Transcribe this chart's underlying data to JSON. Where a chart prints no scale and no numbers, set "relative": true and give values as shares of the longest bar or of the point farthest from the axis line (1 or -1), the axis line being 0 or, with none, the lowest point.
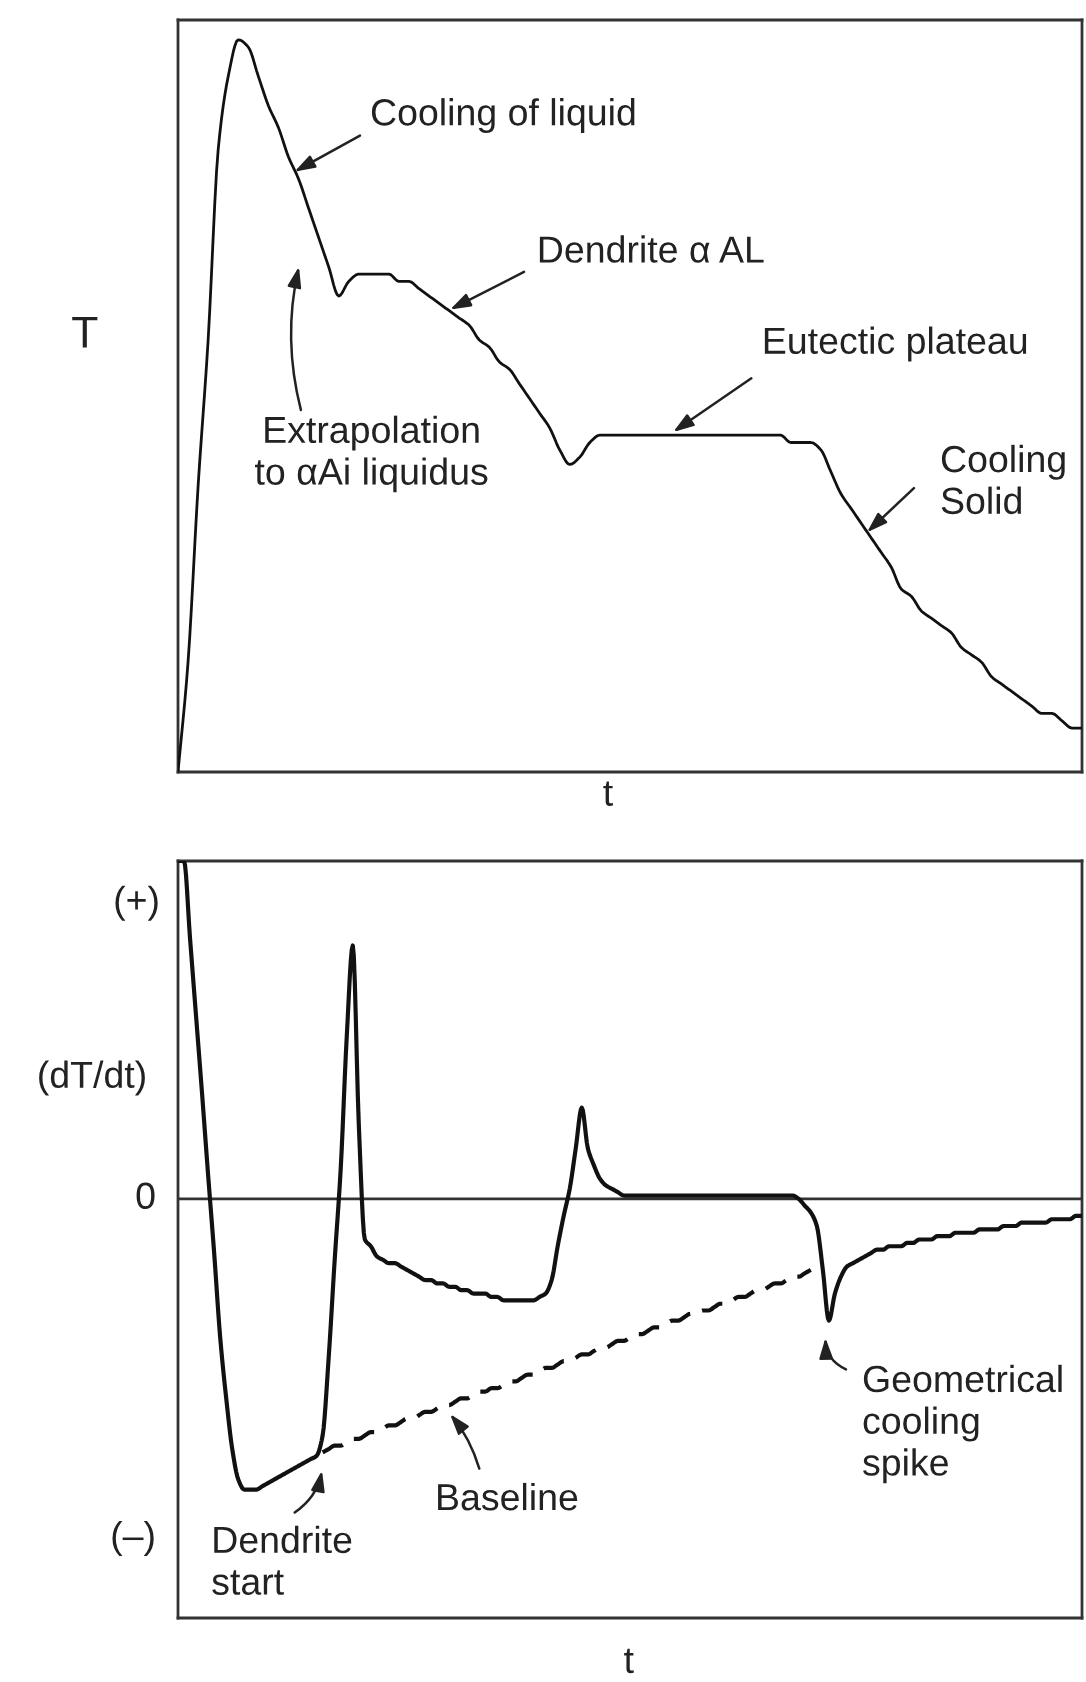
{
  "chart_data": [
    {
      "type": "line",
      "xlabel": "t",
      "ylabel": "T",
      "relative": true,
      "line_style": "solid",
      "categories": [
        null,
        null,
        null,
        null,
        null,
        null,
        null,
        null,
        null,
        null,
        null,
        null,
        null,
        null,
        null,
        null,
        null,
        null,
        null,
        null,
        null,
        null,
        null,
        null,
        null,
        null,
        null,
        null,
        null,
        null,
        null,
        null,
        null,
        null,
        null,
        null,
        null,
        null,
        null,
        null,
        null,
        null,
        null,
        null,
        null,
        null,
        null,
        null,
        null,
        null,
        null,
        null,
        null,
        null,
        null,
        null,
        null,
        null,
        null,
        null,
        null,
        null,
        null,
        null,
        null,
        null,
        null,
        null,
        null,
        null,
        null,
        null,
        null,
        null,
        null,
        null,
        null,
        null,
        null,
        null,
        null,
        null,
        null,
        null,
        null,
        null,
        null,
        null,
        null,
        null,
        null
      ],
      "series": [
        {
          "color": "#111111",
          "values": [
            0,
            0.15,
            0.39,
            0.59,
            0.85,
            0.95,
            1,
            0.99,
            0.95,
            0.91,
            0.88,
            0.84,
            0.81,
            0.77,
            0.73,
            0.69,
            0.65,
            0.67,
            0.68,
            0.68,
            0.68,
            0.68,
            0.67,
            0.67,
            0.66,
            0.65,
            0.64,
            0.63,
            0.62,
            0.61,
            0.59,
            0.58,
            0.56,
            0.55,
            0.53,
            0.51,
            0.49,
            0.47,
            0.44,
            0.42,
            0.43,
            0.45,
            0.46,
            0.46,
            0.46,
            0.46,
            0.46,
            0.46,
            0.46,
            0.46,
            0.46,
            0.46,
            0.46,
            0.46,
            0.46,
            0.46,
            0.46,
            0.46,
            0.46,
            0.46,
            0.46,
            0.45,
            0.45,
            0.45,
            0.44,
            0.41,
            0.38,
            0.36,
            0.34,
            0.32,
            0.3,
            0.28,
            0.25,
            0.24,
            0.22,
            0.21,
            0.2,
            0.19,
            0.17,
            0.16,
            0.15,
            0.13,
            0.12,
            0.11,
            0.1,
            0.09,
            0.08,
            0.08,
            0.07,
            0.06,
            0.06
          ]
        }
      ],
      "annotations": [
        "Cooling of liquid",
        "Dendrite α AL",
        "Eutectic plateau",
        "Cooling\nSolid",
        "Extrapolation\nto αAi liquidus"
      ]
    },
    {
      "type": "line",
      "xlabel": "t",
      "ylabel": "(dT/dt)",
      "relative": true,
      "line_style": "solid",
      "categories": [
        null,
        null,
        null,
        null,
        null,
        null,
        null,
        null,
        null,
        null,
        null,
        null,
        null,
        null,
        null,
        null,
        null,
        null,
        null,
        null,
        null,
        null,
        null,
        null,
        null,
        null,
        null,
        null,
        null,
        null,
        null,
        null,
        null,
        null,
        null,
        null,
        null,
        null,
        null,
        null,
        null,
        null,
        null,
        null,
        null,
        null,
        null,
        null,
        null,
        null,
        null,
        null,
        null,
        null,
        null,
        null,
        null,
        null,
        null,
        null,
        null,
        null,
        null,
        null,
        null,
        null,
        null,
        null,
        null,
        null,
        null,
        null,
        null,
        null,
        null,
        null,
        null,
        null,
        null,
        null,
        null,
        null,
        null,
        null,
        null,
        null,
        null,
        null,
        null,
        null,
        null,
        null,
        null,
        null,
        null,
        null,
        null,
        null,
        null,
        null,
        null,
        null,
        null,
        null,
        null,
        null,
        null,
        null,
        null,
        null,
        null,
        null,
        null,
        null,
        null,
        null,
        null,
        null,
        null,
        null,
        null,
        null,
        null,
        null,
        null,
        null,
        null,
        null,
        null,
        null,
        null,
        null,
        null,
        null,
        null,
        null,
        null,
        null,
        null,
        null,
        null,
        null,
        null,
        null,
        null,
        null,
        null,
        null,
        null,
        null,
        null
      ],
      "series": [
        {
          "color": "#111111",
          "values": [
            1,
            1,
            0.77,
            0.54,
            0.31,
            0.07,
            -0.16,
            -0.41,
            -0.59,
            -0.74,
            -0.83,
            -0.86,
            -0.86,
            -0.86,
            -0.85,
            -0.84,
            -0.83,
            -0.82,
            -0.81,
            -0.8,
            -0.79,
            -0.78,
            -0.77,
            -0.76,
            -0.7,
            -0.47,
            -0.18,
            0.09,
            0.48,
            0.75,
            0.22,
            -0.12,
            -0.14,
            -0.17,
            -0.18,
            -0.19,
            -0.19,
            -0.2,
            -0.21,
            -0.22,
            -0.23,
            -0.24,
            -0.24,
            -0.25,
            -0.25,
            -0.26,
            -0.26,
            -0.27,
            -0.27,
            -0.28,
            -0.28,
            -0.28,
            -0.29,
            -0.29,
            -0.3,
            -0.3,
            -0.3,
            -0.3,
            -0.3,
            -0.3,
            -0.29,
            -0.28,
            -0.24,
            -0.14,
            -0.05,
            0.03,
            0.15,
            0.27,
            0.15,
            0.1,
            0.06,
            0.04,
            0.03,
            0.02,
            0.01,
            0.01,
            0.01,
            0.01,
            0.01,
            0.01,
            0.01,
            0.01,
            0.01,
            0.01,
            0.01,
            0.01,
            0.01,
            0.01,
            0.01,
            0.01,
            0.01,
            0.01,
            0.01,
            0.01,
            0.01,
            0.01,
            0.01,
            0.01,
            0.01,
            0.01,
            0.01,
            0.01,
            0.01,
            0,
            -0.02,
            -0.04,
            -0.08,
            -0.21,
            -0.36,
            -0.28,
            -0.23,
            -0.2,
            -0.19,
            -0.18,
            -0.17,
            -0.16,
            -0.15,
            -0.15,
            -0.14,
            -0.14,
            -0.14,
            -0.13,
            -0.13,
            -0.12,
            -0.12,
            -0.12,
            -0.11,
            -0.11,
            -0.11,
            -0.1,
            -0.1,
            -0.1,
            -0.1,
            -0.09,
            -0.09,
            -0.09,
            -0.09,
            -0.08,
            -0.08,
            -0.08,
            -0.07,
            -0.07,
            -0.07,
            -0.07,
            -0.07,
            -0.06,
            -0.06,
            -0.06,
            -0.06,
            -0.05,
            -0.05
          ]
        },
        {
          "color": "#111111",
          "line_style": "dashed",
          "values": [
            null,
            null,
            null,
            null,
            null,
            null,
            null,
            null,
            null,
            null,
            null,
            null,
            null,
            null,
            null,
            null,
            null,
            null,
            null,
            null,
            null,
            null,
            null,
            null,
            -0.75,
            -0.74,
            -0.73,
            -0.73,
            -0.72,
            -0.71,
            -0.71,
            -0.7,
            -0.69,
            -0.69,
            -0.68,
            -0.67,
            -0.67,
            -0.66,
            -0.65,
            -0.65,
            -0.64,
            -0.63,
            -0.63,
            -0.62,
            -0.61,
            -0.61,
            -0.6,
            -0.59,
            -0.59,
            -0.58,
            -0.57,
            -0.57,
            -0.56,
            -0.56,
            -0.55,
            -0.54,
            -0.54,
            -0.53,
            -0.52,
            -0.52,
            -0.51,
            -0.5,
            -0.5,
            -0.49,
            -0.48,
            -0.48,
            -0.47,
            -0.46,
            -0.46,
            -0.45,
            -0.44,
            -0.44,
            -0.43,
            -0.42,
            -0.42,
            -0.41,
            -0.4,
            -0.4,
            -0.39,
            -0.38,
            -0.38,
            -0.37,
            -0.36,
            -0.36,
            -0.35,
            -0.34,
            -0.34,
            -0.33,
            -0.33,
            -0.32,
            -0.31,
            -0.31,
            -0.3,
            -0.29,
            -0.29,
            -0.28,
            -0.27,
            -0.27,
            -0.26,
            -0.25,
            -0.25,
            -0.24,
            -0.23,
            -0.23,
            -0.22,
            -0.21,
            null,
            null,
            null,
            null,
            null,
            null,
            null,
            null,
            null,
            null,
            null,
            null,
            null,
            null,
            null,
            null,
            null,
            null,
            null,
            null,
            null,
            null,
            null,
            null,
            null,
            null,
            null,
            null,
            null,
            null,
            null,
            null,
            null,
            null,
            null,
            null,
            null,
            null,
            null,
            null,
            null,
            null,
            null,
            null,
            null
          ]
        }
      ],
      "ref_lines": [
        {
          "axis": "y",
          "value": 0,
          "label": "0",
          "color": "#333333"
        }
      ],
      "annotations": [
        "Dendrite\nstart",
        "Baseline",
        "Geometrical\ncooling\nspike",
        "(+)",
        "(–)"
      ]
    }
  ]
}
